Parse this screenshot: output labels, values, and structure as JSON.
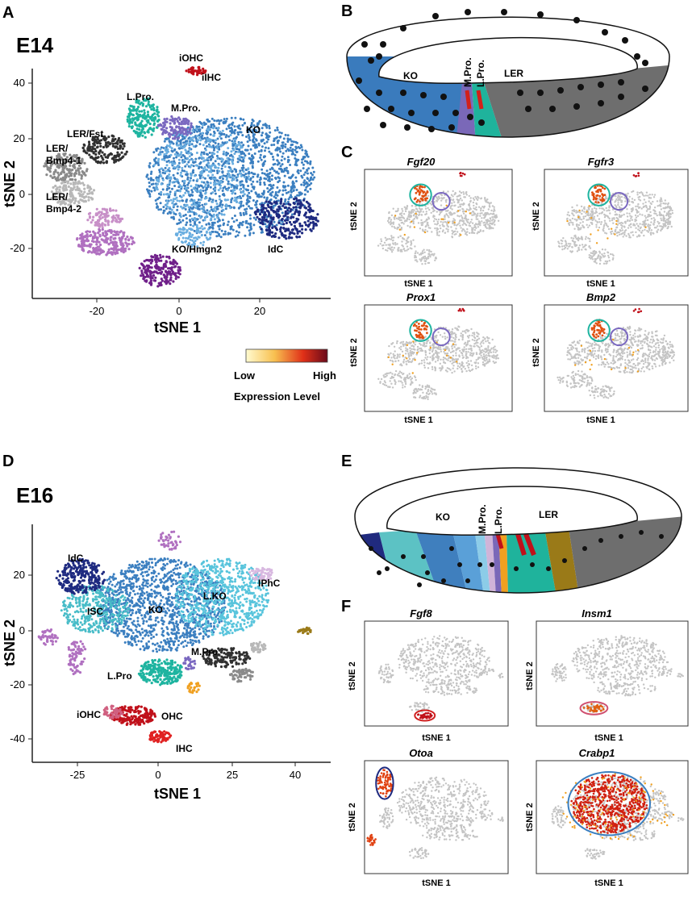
{
  "panel_a": {
    "letter": "A",
    "stage": "E14",
    "x_axis_title": "tSNE 1",
    "y_axis_title": "tSNE 2",
    "x_ticks": [
      "-20",
      "0",
      "20"
    ],
    "y_ticks": [
      "40",
      "20",
      "0",
      "-20"
    ],
    "cluster_labels": {
      "iohc": "iOHC",
      "iihc": "iIHC",
      "lpro": "L.Pro.",
      "mpro": "M.Pro.",
      "ko": "KO",
      "ler_fst": "LER/Fst",
      "ler_bmp41_a": "LER/",
      "ler_bmp41_b": "Bmp4-1",
      "ler_bmp42_a": "LER/",
      "ler_bmp42_b": "Bmp4-2",
      "ko_hmgn2": "KO/Hmgn2",
      "idc": "IdC"
    },
    "legend": {
      "low": "Low",
      "high": "High",
      "title": "Expression Level"
    }
  },
  "panel_b": {
    "letter": "B",
    "labels": {
      "ko": "KO",
      "mpro": "M.Pro.",
      "lpro": "L.Pro.",
      "ler": "LER"
    }
  },
  "panel_c": {
    "letter": "C",
    "genes": [
      "Fgf20",
      "Fgfr3",
      "Prox1",
      "Bmp2"
    ],
    "x_axis_title": "tSNE 1",
    "y_axis_title": "tSNE 2"
  },
  "panel_d": {
    "letter": "D",
    "stage": "E16",
    "x_axis_title": "tSNE 1",
    "y_axis_title": "tSNE 2",
    "x_ticks": [
      "-25",
      "0",
      "25",
      "40"
    ],
    "y_ticks": [
      "20",
      "0",
      "-20",
      "-40"
    ],
    "cluster_labels": {
      "idc": "IdC",
      "isc": "ISC",
      "ko": "KO",
      "lko": "L.KO",
      "iphc": "IPhC",
      "mpro": "M.Pro",
      "lpro": "L.Pro",
      "iohc": "iOHC",
      "ohc": "OHC",
      "ihc": "IHC"
    }
  },
  "panel_e": {
    "letter": "E",
    "labels": {
      "ko": "KO",
      "mpro": "M.Pro.",
      "lpro": "L.Pro.",
      "ler": "LER"
    }
  },
  "panel_f": {
    "letter": "F",
    "genes": [
      "Fgf8",
      "Insm1",
      "Otoa",
      "Crabp1"
    ],
    "x_axis_title": "tSNE 1",
    "y_axis_title": "tSNE 2"
  },
  "colors": {
    "ko": "#3b7fc0",
    "ko_light": "#6aaee0",
    "idc": "#1e2a80",
    "lpro": "#1eb4a0",
    "mpro": "#7a68c0",
    "ler_dark": "#303030",
    "ler_mid": "#8a8a8a",
    "ler_light": "#b8b8b8",
    "pink": "#c890c8",
    "magenta": "#b070c0",
    "purple": "#70208a",
    "red": "#c0101a",
    "gray": "#bdbdbd",
    "lko": "#58c4dc",
    "isc": "#48bcc8",
    "orange": "#f0a020",
    "olive": "#9a7a18",
    "iphc": "#d8b8e0"
  }
}
